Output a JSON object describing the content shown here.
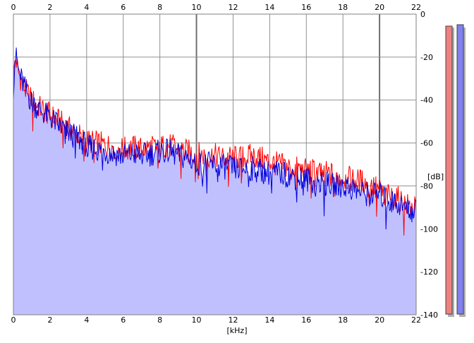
{
  "chart_data": {
    "type": "area",
    "x_unit_label": "[kHz]",
    "y_unit_label": "[dB]",
    "x_ticks": [
      "0",
      "2",
      "4",
      "6",
      "8",
      "10",
      "12",
      "14",
      "16",
      "18",
      "20",
      "22"
    ],
    "y_ticks": [
      "0",
      "-20",
      "-40",
      "-60",
      "-80",
      "-100",
      "-120",
      "-140"
    ],
    "xlim": [
      0,
      22
    ],
    "ylim": [
      -140,
      0
    ],
    "grid": true,
    "series": [
      {
        "color": "#ff0000",
        "x": [
          0.0,
          0.1,
          0.2,
          0.3,
          0.5,
          0.7,
          1.0,
          1.5,
          2.0,
          2.5,
          3.0,
          3.5,
          4.0,
          4.5,
          5.0,
          5.5,
          6.0,
          6.5,
          7.0,
          7.5,
          8.0,
          8.5,
          9.0,
          9.5,
          10.0,
          10.5,
          11.0,
          11.5,
          12.0,
          12.5,
          13.0,
          13.5,
          14.0,
          14.5,
          15.0,
          15.5,
          16.0,
          16.5,
          17.0,
          17.5,
          18.0,
          18.5,
          19.0,
          19.5,
          20.0,
          20.5,
          21.0,
          21.5,
          22.0
        ],
        "values": [
          -32,
          -20,
          -24,
          -28,
          -32,
          -36,
          -40,
          -44,
          -47,
          -50,
          -53,
          -56,
          -59,
          -60,
          -61,
          -62,
          -63,
          -62,
          -63,
          -62,
          -62,
          -61,
          -63,
          -64,
          -65,
          -66,
          -66,
          -67,
          -67,
          -67,
          -66,
          -67,
          -69,
          -70,
          -71,
          -72,
          -73,
          -73,
          -74,
          -75,
          -76,
          -77,
          -78,
          -79,
          -82,
          -85,
          -86,
          -89,
          -91
        ]
      },
      {
        "color": "#0000dd",
        "x": [
          0.0,
          0.1,
          0.2,
          0.3,
          0.5,
          0.7,
          1.0,
          1.5,
          2.0,
          2.5,
          3.0,
          3.5,
          4.0,
          4.5,
          5.0,
          5.5,
          6.0,
          6.5,
          7.0,
          7.5,
          8.0,
          8.5,
          9.0,
          9.5,
          10.0,
          10.5,
          11.0,
          11.5,
          12.0,
          12.5,
          13.0,
          13.5,
          14.0,
          14.5,
          15.0,
          15.5,
          16.0,
          16.5,
          17.0,
          17.5,
          18.0,
          18.5,
          19.0,
          19.5,
          20.0,
          20.5,
          21.0,
          21.5,
          22.0
        ],
        "values": [
          -34,
          -18,
          -23,
          -27,
          -32,
          -36,
          -41,
          -45,
          -48,
          -52,
          -55,
          -58,
          -61,
          -63,
          -64,
          -65,
          -66,
          -65,
          -66,
          -65,
          -64,
          -64,
          -66,
          -67,
          -69,
          -70,
          -70,
          -71,
          -72,
          -72,
          -72,
          -73,
          -74,
          -74,
          -75,
          -76,
          -77,
          -78,
          -79,
          -80,
          -80,
          -81,
          -83,
          -84,
          -84,
          -87,
          -88,
          -91,
          -92
        ]
      }
    ]
  },
  "level_meters": [
    {
      "color": "#f08080",
      "level": -140
    },
    {
      "color": "#8080f0",
      "level": -140
    }
  ]
}
